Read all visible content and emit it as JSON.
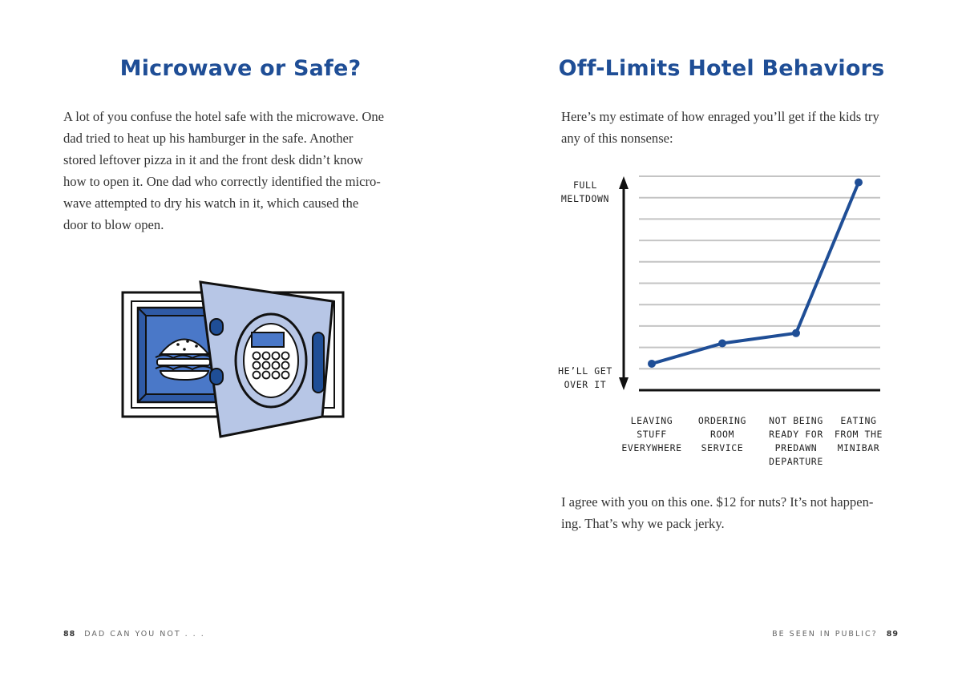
{
  "left_page": {
    "heading": "Microwave or Safe?",
    "body_lines": [
      "A lot of you confuse the hotel safe with the microwave. One",
      "dad tried to heat up his hamburger in the safe. Another",
      "stored leftover pizza in it and the front desk didn’t know",
      "how to open it. One dad who correctly identified the micro-",
      "wave attempted to dry his watch in it, which caused the",
      "door to blow open."
    ],
    "illustration_icon": "hotel-safe-with-hamburger-icon",
    "footer": {
      "page_number": "88",
      "running_head": "DAD CAN YOU NOT . . ."
    }
  },
  "right_page": {
    "heading": "Off-Limits Hotel Behaviors",
    "intro_lines": [
      "Here’s my estimate of how enraged you’ll get if the kids try",
      "any of this nonsense:"
    ],
    "outro_lines": [
      "I agree with you on this one. $12 for nuts? It’s not happen-",
      "ing. That’s why we pack jerky."
    ],
    "footer": {
      "running_head": "BE SEEN IN PUBLIC?",
      "page_number": "89"
    }
  },
  "chart_data": {
    "type": "line",
    "title": "",
    "y_axis_top_label": [
      "FULL",
      "MELTDOWN"
    ],
    "y_axis_bottom_label": [
      "HE’LL GET",
      "OVER IT"
    ],
    "categories": [
      [
        "LEAVING",
        "STUFF",
        "EVERYWHERE"
      ],
      [
        "ORDERING",
        "ROOM",
        "SERVICE"
      ],
      [
        "NOT BEING",
        "READY FOR",
        "PREDAWN",
        "DEPARTURE"
      ],
      [
        "EATING",
        "FROM THE",
        "MINIBAR"
      ]
    ],
    "values": [
      1.3,
      2.3,
      2.8,
      10.2
    ],
    "ylim": [
      0,
      10.5
    ],
    "grid": true,
    "gridline_count": 10,
    "colors": {
      "line": "#1f4e96",
      "grid": "#c4c4c4",
      "axis": "#111111"
    }
  }
}
